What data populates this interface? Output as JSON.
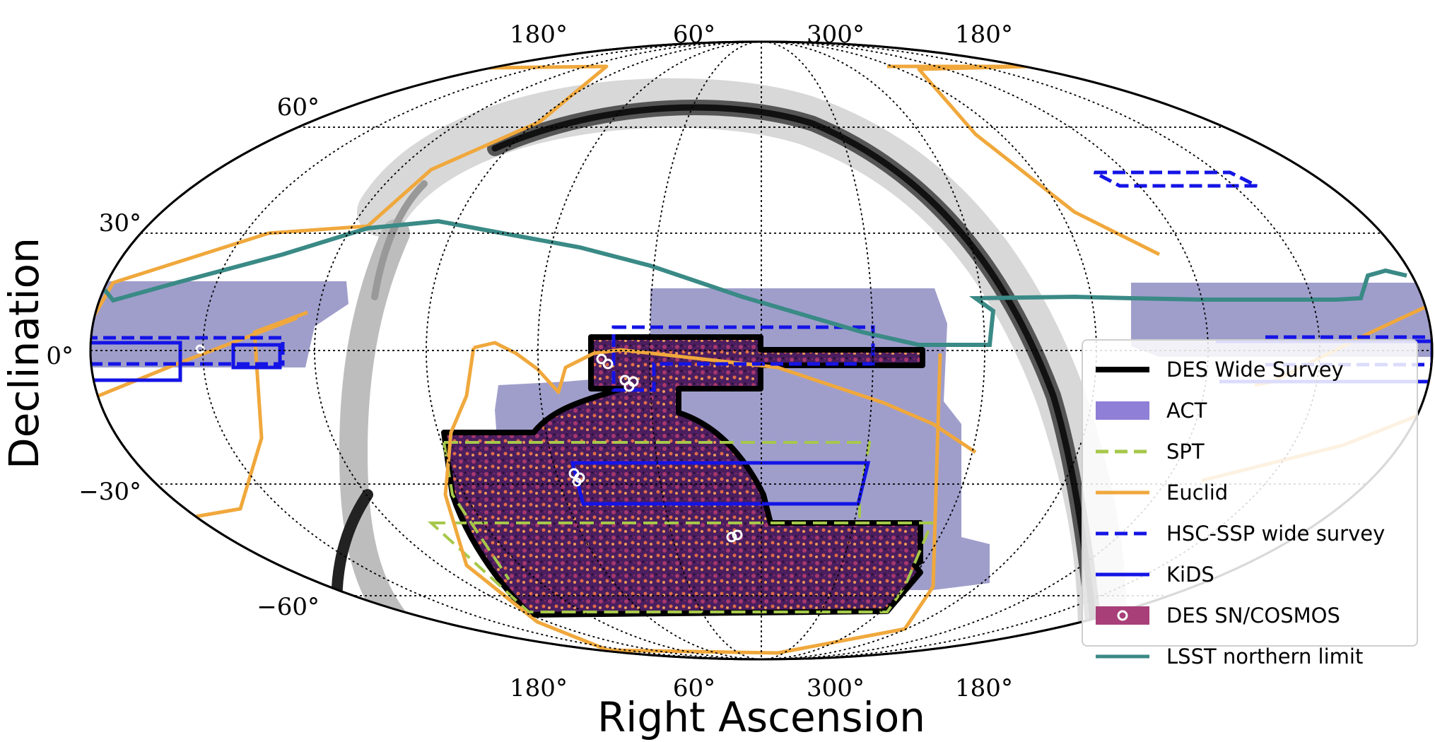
{
  "title": "",
  "axes": {
    "xlabel": "Right Ascension",
    "ylabel": "Declination",
    "ra_top_ticks": [
      "180°",
      "60°",
      "300°",
      "180°"
    ],
    "ra_bottom_ticks": [
      "180°",
      "60°",
      "300°",
      "180°"
    ],
    "dec_ticks": [
      "60°",
      "30°",
      "0°",
      "−30°",
      "−60°"
    ]
  },
  "projection": "mollweide",
  "background": "galactic dust extinction (grayscale)",
  "legend": {
    "placement": "lower-right",
    "entries": [
      {
        "label": "DES Wide Survey",
        "color": "#000000",
        "style": "solid-thick"
      },
      {
        "label": "ACT",
        "color": "#9a8fcc",
        "style": "filled"
      },
      {
        "label": "SPT",
        "color": "#a6c84a",
        "style": "dashed"
      },
      {
        "label": "Euclid",
        "color": "#f0a83c",
        "style": "solid"
      },
      {
        "label": "HSC-SSP wide survey",
        "color": "#1414e6",
        "style": "dashed"
      },
      {
        "label": "KiDS",
        "color": "#1414e6",
        "style": "solid"
      },
      {
        "label": "DES SN/COSMOS",
        "color": "#9b3a73",
        "style": "filled-with-marker"
      },
      {
        "label": "LSST northern limit",
        "color": "#3a8a86",
        "style": "solid"
      }
    ]
  },
  "colors": {
    "des": "#000000",
    "des_fill": "#4a1e5c",
    "act": "#9a99c8",
    "spt": "#a6c84a",
    "euclid": "#f0a83c",
    "hsc": "#1414e6",
    "kids": "#1414e6",
    "lsst": "#3a8a86",
    "grid": "#000000"
  }
}
